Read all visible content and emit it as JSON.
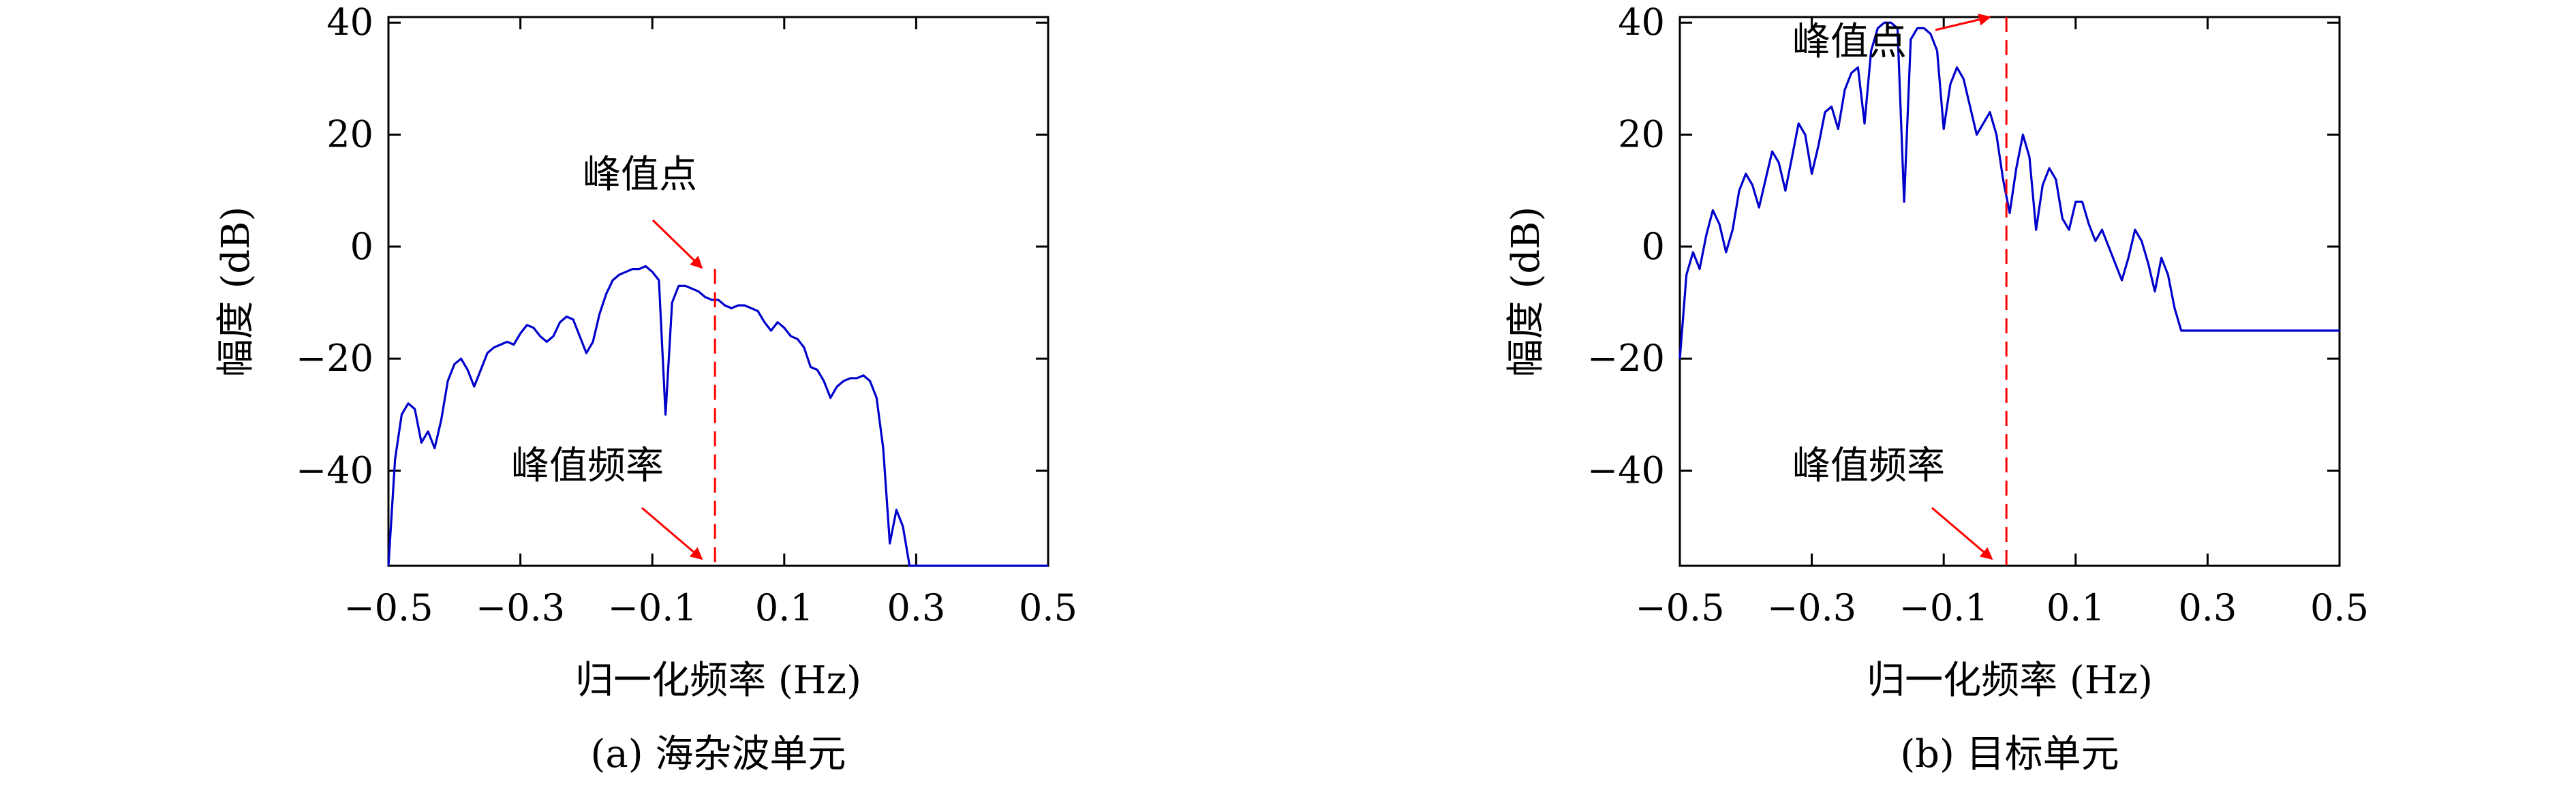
{
  "panels": [
    {
      "caption": "(a) 海杂波单元",
      "chart_data": {
        "type": "line",
        "xlabel": "归一化频率 (Hz)",
        "ylabel": "幅度 (dB)",
        "xlim": [
          -0.5,
          0.5
        ],
        "ylim": [
          -57,
          41
        ],
        "xticks": [
          -0.5,
          -0.3,
          -0.1,
          0.1,
          0.3,
          0.5
        ],
        "xtick_labels": [
          "−0.5",
          "−0.3",
          "−0.1",
          "0.1",
          "0.3",
          "0.5"
        ],
        "yticks": [
          40,
          20,
          0,
          -20,
          -40
        ],
        "ytick_labels": [
          "40",
          "20",
          "0",
          "−20",
          "−40"
        ],
        "grid": false,
        "series": [
          {
            "color": "#0000cc",
            "x": [
              -0.5,
              -0.49,
              -0.48,
              -0.47,
              -0.46,
              -0.45,
              -0.44,
              -0.43,
              -0.42,
              -0.41,
              -0.4,
              -0.39,
              -0.38,
              -0.37,
              -0.36,
              -0.35,
              -0.34,
              -0.33,
              -0.32,
              -0.31,
              -0.3,
              -0.29,
              -0.28,
              -0.27,
              -0.26,
              -0.25,
              -0.24,
              -0.23,
              -0.22,
              -0.21,
              -0.2,
              -0.19,
              -0.18,
              -0.17,
              -0.16,
              -0.15,
              -0.14,
              -0.13,
              -0.12,
              -0.11,
              -0.1,
              -0.09,
              -0.08,
              -0.07,
              -0.06,
              -0.05,
              -0.04,
              -0.03,
              -0.02,
              -0.01,
              0,
              0.01,
              0.02,
              0.03,
              0.04,
              0.05,
              0.06,
              0.07,
              0.08,
              0.09,
              0.1,
              0.11,
              0.12,
              0.13,
              0.14,
              0.15,
              0.16,
              0.17,
              0.18,
              0.19,
              0.2,
              0.21,
              0.22,
              0.23,
              0.24,
              0.25,
              0.26,
              0.27,
              0.28,
              0.29,
              0.3,
              0.31,
              0.32,
              0.33,
              0.34,
              0.35,
              0.36,
              0.37,
              0.38,
              0.39,
              0.4,
              0.41,
              0.42,
              0.43,
              0.44,
              0.45,
              0.46,
              0.47,
              0.48,
              0.49,
              0.5
            ],
            "values": [
              -57,
              -38,
              -30,
              -28,
              -29,
              -35,
              -33,
              -36,
              -31,
              -24,
              -21,
              -20,
              -22,
              -25,
              -22,
              -19,
              -18,
              -17.5,
              -17,
              -17.5,
              -15.5,
              -14,
              -14.5,
              -16,
              -17,
              -16,
              -13.5,
              -12.5,
              -13,
              -16,
              -19,
              -17,
              -12,
              -8.5,
              -6,
              -5,
              -4.5,
              -4,
              -4,
              -3.5,
              -4.5,
              -6,
              -30,
              -10,
              -7,
              -7,
              -7.5,
              -8,
              -9,
              -9.5,
              -9.5,
              -10.5,
              -11,
              -10.5,
              -10.5,
              -11,
              -11.5,
              -13.5,
              -15,
              -13.5,
              -14.5,
              -16,
              -16.5,
              -18,
              -21.5,
              -22,
              -24,
              -27,
              -25,
              -24,
              -23.5,
              -23.5,
              -23,
              -24,
              -27,
              -36,
              -53,
              -47,
              -50,
              -57,
              -57,
              -57,
              -57,
              -57,
              -57,
              -57,
              -57,
              -57,
              -57,
              -57,
              -57,
              -57,
              -57,
              -57,
              -57,
              -57,
              -57,
              -57,
              -57,
              -57,
              -57
            ]
          }
        ],
        "peak_x": -0.005,
        "annotations": [
          {
            "text": "峰值点",
            "x": -0.16,
            "y": 11
          },
          {
            "text": "峰值频率",
            "x": -0.28,
            "y": -40
          }
        ]
      }
    },
    {
      "caption": "(b) 目标单元",
      "chart_data": {
        "type": "line",
        "xlabel": "归一化频率 (Hz)",
        "ylabel": "幅度 (dB)",
        "xlim": [
          -0.5,
          0.5
        ],
        "ylim": [
          -57,
          41
        ],
        "xticks": [
          -0.5,
          -0.3,
          -0.1,
          0.1,
          0.3,
          0.5
        ],
        "xtick_labels": [
          "−0.5",
          "−0.3",
          "−0.1",
          "0.1",
          "0.3",
          "0.5"
        ],
        "yticks": [
          40,
          20,
          0,
          -20,
          -40
        ],
        "ytick_labels": [
          "40",
          "20",
          "0",
          "−20",
          "−40"
        ],
        "grid": false,
        "series": [
          {
            "color": "#0000cc",
            "x": [
              -0.5,
              -0.49,
              -0.48,
              -0.47,
              -0.46,
              -0.45,
              -0.44,
              -0.43,
              -0.42,
              -0.41,
              -0.4,
              -0.39,
              -0.38,
              -0.37,
              -0.36,
              -0.35,
              -0.34,
              -0.33,
              -0.32,
              -0.31,
              -0.3,
              -0.29,
              -0.28,
              -0.27,
              -0.26,
              -0.25,
              -0.24,
              -0.23,
              -0.22,
              -0.21,
              -0.2,
              -0.19,
              -0.18,
              -0.17,
              -0.16,
              -0.15,
              -0.14,
              -0.13,
              -0.12,
              -0.11,
              -0.1,
              -0.09,
              -0.08,
              -0.07,
              -0.06,
              -0.05,
              -0.04,
              -0.03,
              -0.02,
              -0.01,
              0,
              0.01,
              0.02,
              0.03,
              0.04,
              0.05,
              0.06,
              0.07,
              0.08,
              0.09,
              0.1,
              0.11,
              0.12,
              0.13,
              0.14,
              0.15,
              0.16,
              0.17,
              0.18,
              0.19,
              0.2,
              0.21,
              0.22,
              0.23,
              0.24,
              0.25,
              0.26,
              0.27,
              0.28,
              0.29,
              0.3,
              0.31,
              0.32,
              0.33,
              0.34,
              0.35,
              0.36,
              0.37,
              0.38,
              0.39,
              0.4,
              0.41,
              0.42,
              0.43,
              0.44,
              0.45,
              0.46,
              0.47,
              0.48,
              0.49,
              0.5
            ],
            "values": [
              -20,
              -5,
              -1,
              -4,
              2,
              6.5,
              4,
              -1,
              3,
              10,
              13,
              11,
              7,
              12,
              17,
              15,
              10,
              16,
              22,
              20,
              13,
              18,
              24,
              25,
              21,
              28,
              31,
              32,
              22,
              35,
              39,
              40,
              40,
              39,
              8,
              37,
              39,
              39,
              38,
              35,
              21,
              29,
              32,
              30,
              25,
              20,
              22,
              24,
              20,
              12,
              6,
              14,
              20,
              16,
              3,
              11,
              14,
              12,
              5,
              3,
              8,
              8,
              4,
              1,
              3,
              0,
              -3,
              -6,
              -2,
              3,
              1,
              -3,
              -8,
              -2,
              -5,
              -11,
              -15,
              -15,
              -15,
              -15,
              -15,
              -15,
              -15,
              -15,
              -15,
              -15,
              -15,
              -15,
              -15,
              -15,
              -15,
              -15,
              -15,
              -15,
              -15,
              -15,
              -15,
              -15,
              -15,
              -15,
              -15
            ]
          }
        ],
        "peak_x": -0.005,
        "annotations": [
          {
            "text": "峰值点",
            "x": -0.19,
            "y": 35.5
          },
          {
            "text": "峰值频率",
            "x": -0.2,
            "y": -40
          }
        ]
      }
    }
  ]
}
